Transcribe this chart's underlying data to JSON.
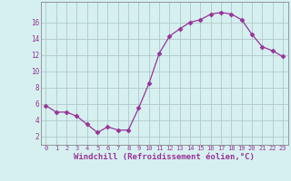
{
  "x": [
    0,
    1,
    2,
    3,
    4,
    5,
    6,
    7,
    8,
    9,
    10,
    11,
    12,
    13,
    14,
    15,
    16,
    17,
    18,
    19,
    20,
    21,
    22,
    23
  ],
  "y": [
    5.8,
    5.0,
    5.0,
    4.5,
    3.5,
    2.5,
    3.2,
    2.8,
    2.8,
    5.5,
    8.5,
    12.2,
    14.3,
    15.2,
    16.0,
    16.3,
    17.0,
    17.2,
    17.0,
    16.3,
    14.5,
    13.0,
    12.5,
    11.8
  ],
  "line_color": "#993399",
  "marker": "D",
  "marker_size": 2.5,
  "bg_color": "#d6f0f0",
  "grid_color": "#b0c8c8",
  "xlabel": "Windchill (Refroidissement éolien,°C)",
  "xlabel_fontsize": 6.5,
  "ytick_labels": [
    "2",
    "4",
    "6",
    "8",
    "10",
    "12",
    "14",
    "16"
  ],
  "ytick_values": [
    2,
    4,
    6,
    8,
    10,
    12,
    14,
    16
  ],
  "xticks": [
    0,
    1,
    2,
    3,
    4,
    5,
    6,
    7,
    8,
    9,
    10,
    11,
    12,
    13,
    14,
    15,
    16,
    17,
    18,
    19,
    20,
    21,
    22,
    23
  ],
  "ylim": [
    1.0,
    18.5
  ],
  "xlim": [
    -0.5,
    23.5
  ],
  "tick_color": "#993399",
  "spine_color": "#888888"
}
